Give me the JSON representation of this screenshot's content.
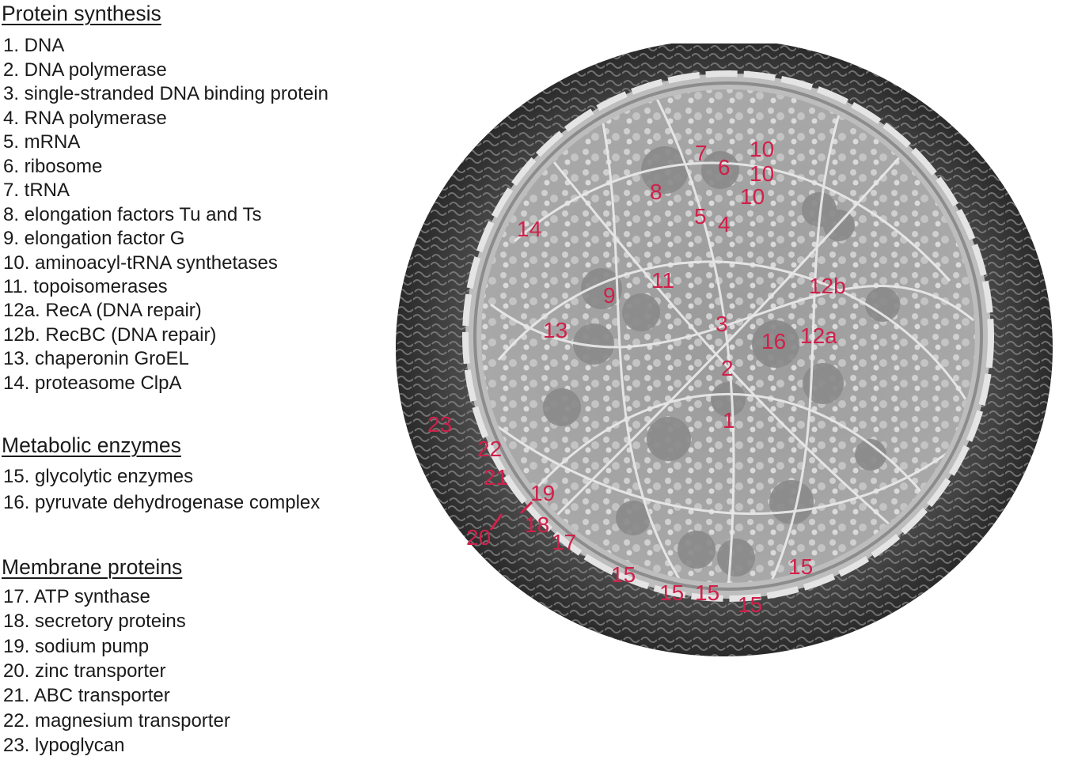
{
  "sections": [
    {
      "title": "Protein synthesis",
      "items": [
        "1. DNA",
        "2. DNA polymerase",
        "3. single-stranded DNA binding protein",
        "4. RNA polymerase",
        "5. mRNA",
        "6. ribosome",
        "7. tRNA",
        "8. elongation factors Tu and Ts",
        "9. elongation factor G",
        "10. aminoacyl-tRNA synthetases",
        "11. topoisomerases",
        "12a. RecA (DNA repair)",
        "12b. RecBC (DNA repair)",
        "13. chaperonin GroEL",
        "14. proteasome ClpA"
      ]
    },
    {
      "title": "Metabolic enzymes",
      "items": [
        "15. glycolytic enzymes",
        "16. pyruvate dehydrogenase complex"
      ]
    },
    {
      "title": "Membrane proteins",
      "items": [
        "17. ATP synthase",
        "18. secretory proteins",
        "19. sodium pump",
        "20. zinc transporter",
        "21. ABC transporter",
        "22. magnesium transporter",
        "23. lypoglycan"
      ]
    }
  ],
  "diagram": {
    "label_color": "#d0204a",
    "labels": [
      "7",
      "10",
      "6",
      "10",
      "8",
      "10",
      "5",
      "4",
      "14",
      "11",
      "9",
      "12b",
      "3",
      "13",
      "16",
      "12a",
      "2",
      "1",
      "23",
      "22",
      "21",
      "19",
      "18",
      "20",
      "17",
      "15",
      "15",
      "15",
      "15",
      "15"
    ]
  }
}
